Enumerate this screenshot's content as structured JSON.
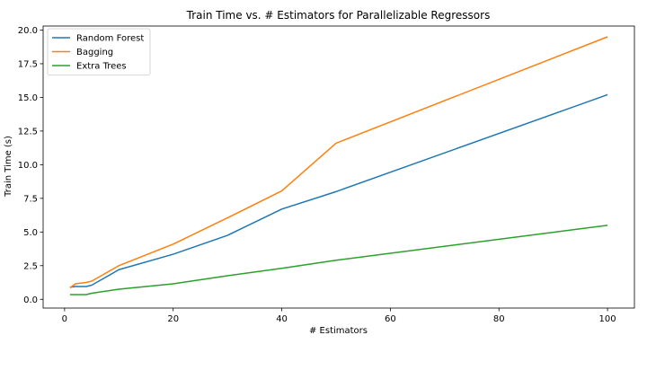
{
  "chart_data": {
    "type": "line",
    "title": "Train Time vs. # Estimators for Parallelizable Regressors",
    "xlabel": "# Estimators",
    "ylabel": "Train Time (s)",
    "xlim": [
      -3.95,
      104.95
    ],
    "ylim": [
      -0.65,
      20.3
    ],
    "xticks": [
      0,
      20,
      40,
      60,
      80,
      100
    ],
    "xtick_labels": [
      "0",
      "20",
      "40",
      "60",
      "80",
      "100"
    ],
    "yticks": [
      0,
      2.5,
      5,
      7.5,
      10,
      12.5,
      15,
      17.5,
      20
    ],
    "ytick_labels": [
      "0.0",
      "2.5",
      "5.0",
      "7.5",
      "10.0",
      "12.5",
      "15.0",
      "17.5",
      "20.0"
    ],
    "grid": false,
    "legend_position": "top-left",
    "series": [
      {
        "name": "Random Forest",
        "color": "#1f77b4",
        "x": [
          1,
          2,
          3,
          4,
          5,
          10,
          20,
          30,
          40,
          50,
          100
        ],
        "values": [
          0.9,
          0.95,
          0.95,
          0.95,
          1.05,
          2.2,
          3.35,
          4.75,
          6.7,
          8.0,
          15.2
        ]
      },
      {
        "name": "Bagging",
        "color": "#ff7f0e",
        "x": [
          1,
          2,
          3,
          4,
          5,
          10,
          20,
          30,
          40,
          50,
          100
        ],
        "values": [
          0.85,
          1.15,
          1.2,
          1.25,
          1.35,
          2.5,
          4.1,
          6.05,
          8.05,
          11.6,
          19.5
        ]
      },
      {
        "name": "Extra Trees",
        "color": "#2ca02c",
        "x": [
          1,
          2,
          3,
          4,
          5,
          10,
          20,
          30,
          40,
          50,
          100
        ],
        "values": [
          0.35,
          0.35,
          0.35,
          0.35,
          0.45,
          0.75,
          1.15,
          1.75,
          2.3,
          2.9,
          5.5
        ]
      }
    ]
  }
}
